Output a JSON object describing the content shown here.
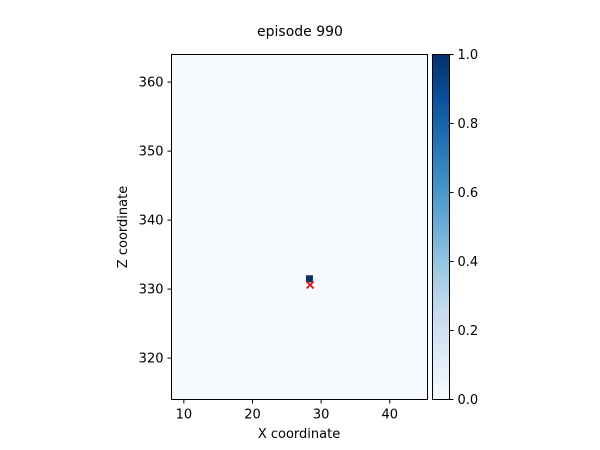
{
  "chart_data": {
    "type": "heatmap",
    "title": "episode 990",
    "xlabel": "X coordinate",
    "ylabel": "Z coordinate",
    "xlim": [
      8.2,
      45.5
    ],
    "ylim": [
      314,
      364
    ],
    "xticks": [
      10,
      20,
      30,
      40
    ],
    "yticks": [
      320,
      330,
      340,
      350,
      360
    ],
    "heatmap_background_value": 0.0,
    "cells": [
      {
        "x": 28.3,
        "z": 331.5,
        "value": 1.0
      }
    ],
    "markers": [
      {
        "type": "x",
        "x": 28.4,
        "z": 330.6,
        "color": "#d62728"
      }
    ],
    "colorbar": {
      "cmap": "Blues",
      "min": 0.0,
      "max": 1.0,
      "ticks": [
        "0.0",
        "0.2",
        "0.4",
        "0.6",
        "0.8",
        "1.0"
      ]
    },
    "colors": {
      "heatmap_zero": "#f7fbff",
      "heatmap_one": "#08306b",
      "marker": "#d62728"
    }
  }
}
